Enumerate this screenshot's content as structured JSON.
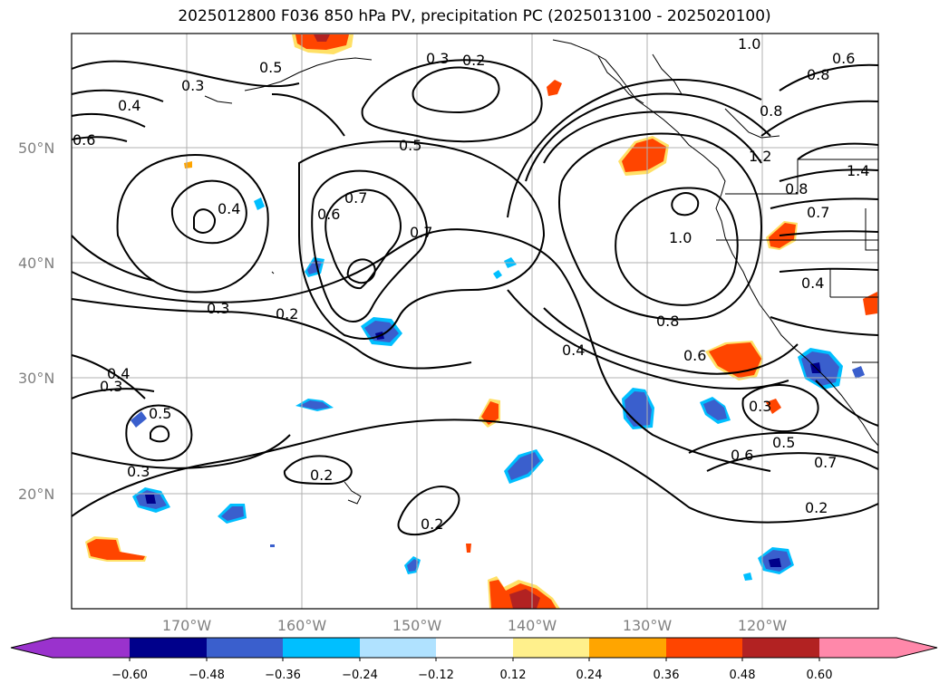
{
  "title": "2025012800 F036 850 hPa PV, precipitation PC (2025013100 - 2025020100)",
  "map": {
    "lat_range": [
      10,
      60
    ],
    "lon_range": [
      -180,
      -110
    ],
    "gridlines": true,
    "lat_labels": [
      "20°N",
      "30°N",
      "40°N",
      "50°N"
    ],
    "lon_labels": [
      "170°W",
      "160°W",
      "150°W",
      "140°W",
      "130°W",
      "120°W"
    ],
    "contour_labels": [
      "1.0",
      "0.8",
      "0.5",
      "0.3",
      "0.2",
      "0.8",
      "0.6",
      "0.3",
      "0.4",
      "0.6",
      "0.4",
      "0.5",
      "0.7",
      "0.6",
      "0.7",
      "0.8",
      "1.2",
      "1.4",
      "0.7",
      "1.0",
      "0.4",
      "0.3",
      "0.2",
      "0.8",
      "0.6",
      "0.4",
      "0.3",
      "0.5",
      "0.4",
      "0.3",
      "0.5",
      "0.6",
      "0.7",
      "0.3",
      "0.2",
      "0.2",
      "0.2"
    ]
  },
  "colorbar": {
    "ticks": [
      "−0.60",
      "−0.48",
      "−0.36",
      "−0.24",
      "−0.12",
      "0.12",
      "0.24",
      "0.36",
      "0.48",
      "0.60"
    ],
    "colors": [
      "#9a32cd",
      "#00008b",
      "#3a5fcd",
      "#00bfff",
      "#b0e2ff",
      "#ffffff",
      "#fff08c",
      "#ffa500",
      "#ff4500",
      "#b22222",
      "#ff88aa"
    ]
  },
  "colors": {
    "contour": "#000000",
    "coast": "#000000",
    "grid": "#b0b0b0",
    "neg_dark": "#00008b",
    "neg_mid": "#3a5fcd",
    "neg_light": "#00bfff",
    "pos_light": "#ffe066",
    "pos_mid": "#ff4500",
    "pos_dark": "#b22222"
  }
}
